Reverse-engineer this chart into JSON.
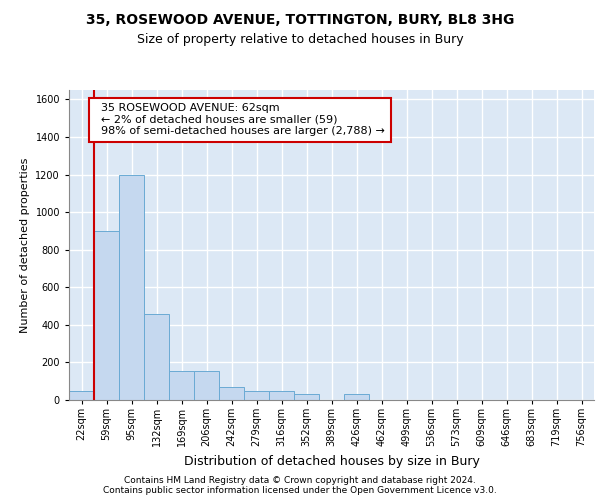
{
  "title_line1": "35, ROSEWOOD AVENUE, TOTTINGTON, BURY, BL8 3HG",
  "title_line2": "Size of property relative to detached houses in Bury",
  "xlabel": "Distribution of detached houses by size in Bury",
  "ylabel": "Number of detached properties",
  "bar_color": "#c5d8ef",
  "bar_edge_color": "#6aaad4",
  "background_color": "#dce8f5",
  "grid_color": "#ffffff",
  "categories": [
    "22sqm",
    "59sqm",
    "95sqm",
    "132sqm",
    "169sqm",
    "206sqm",
    "242sqm",
    "279sqm",
    "316sqm",
    "352sqm",
    "389sqm",
    "426sqm",
    "462sqm",
    "499sqm",
    "536sqm",
    "573sqm",
    "609sqm",
    "646sqm",
    "683sqm",
    "719sqm",
    "756sqm"
  ],
  "values": [
    50,
    900,
    1200,
    460,
    155,
    155,
    70,
    50,
    50,
    30,
    0,
    30,
    0,
    0,
    0,
    0,
    0,
    0,
    0,
    0,
    0
  ],
  "ylim": [
    0,
    1650
  ],
  "yticks": [
    0,
    200,
    400,
    600,
    800,
    1000,
    1200,
    1400,
    1600
  ],
  "property_line_color": "#cc0000",
  "annotation_text": "  35 ROSEWOOD AVENUE: 62sqm\n  ← 2% of detached houses are smaller (59)\n  98% of semi-detached houses are larger (2,788) →",
  "annotation_box_color": "#cc0000",
  "footnote": "Contains HM Land Registry data © Crown copyright and database right 2024.\nContains public sector information licensed under the Open Government Licence v3.0.",
  "title_fontsize": 10,
  "subtitle_fontsize": 9,
  "tick_fontsize": 7,
  "annotation_fontsize": 8,
  "ylabel_fontsize": 8,
  "xlabel_fontsize": 9
}
